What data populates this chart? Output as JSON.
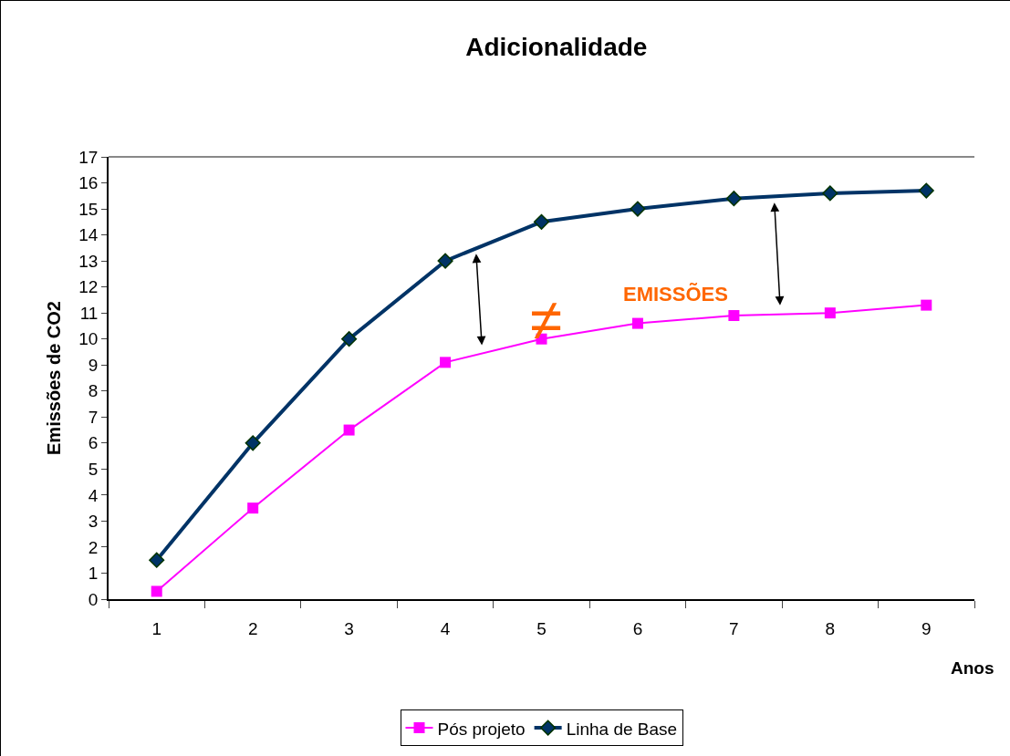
{
  "chart_data": {
    "type": "line",
    "title": "Adicionalidade",
    "xlabel": "Anos",
    "ylabel": "Emissões de CO2",
    "categories": [
      "1",
      "2",
      "3",
      "4",
      "5",
      "6",
      "7",
      "8",
      "9"
    ],
    "series": [
      {
        "name": "Pós projeto",
        "color": "#ff00ff",
        "marker": "square",
        "values": [
          0.3,
          3.5,
          6.5,
          9.1,
          10.0,
          10.6,
          10.9,
          11.0,
          11.3
        ]
      },
      {
        "name": "Linha de Base",
        "color": "#003366",
        "marker": "diamond",
        "values": [
          1.5,
          6.0,
          10.0,
          13.0,
          14.5,
          15.0,
          15.4,
          15.6,
          15.7
        ]
      }
    ],
    "ylim": [
      0,
      17
    ],
    "yticks": [
      0,
      1,
      2,
      3,
      4,
      5,
      6,
      7,
      8,
      9,
      10,
      11,
      12,
      13,
      14,
      15,
      16,
      17
    ],
    "annotations": [
      "≠",
      "EMISSÕES"
    ],
    "grid": false,
    "legend": "bottom",
    "line_style": "solid"
  }
}
